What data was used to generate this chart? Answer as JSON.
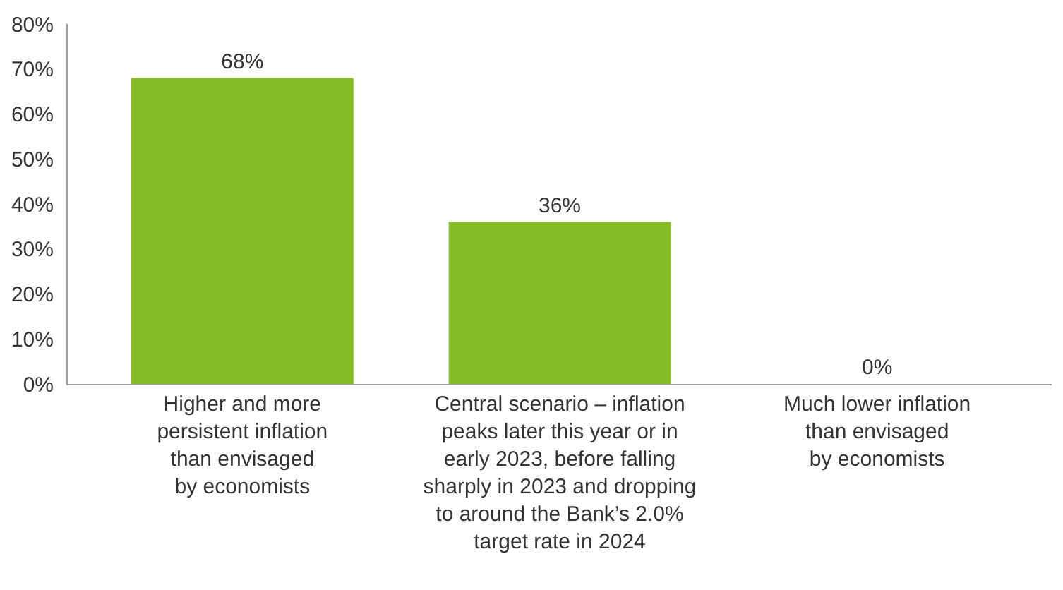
{
  "chart_data": {
    "type": "bar",
    "categories": [
      "Higher and more\npersistent inflation\nthan envisaged\nby economists",
      "Central scenario – inflation\npeaks later this year or in\nearly 2023, before falling\nsharply in 2023 and dropping\nto around the Bank’s 2.0%\ntarget rate in 2024",
      "Much lower inflation\nthan envisaged\nby economists"
    ],
    "values": [
      68,
      36,
      0
    ],
    "value_labels": [
      "68%",
      "36%",
      "0%"
    ],
    "color": "#86bc25",
    "ylim": [
      0,
      80
    ],
    "yticks": [
      {
        "value": 0,
        "label": "0%"
      },
      {
        "value": 10,
        "label": "10%"
      },
      {
        "value": 20,
        "label": "20%"
      },
      {
        "value": 30,
        "label": "30%"
      },
      {
        "value": 40,
        "label": "40%"
      },
      {
        "value": 50,
        "label": "50%"
      },
      {
        "value": 60,
        "label": "60%"
      },
      {
        "value": 70,
        "label": "70%"
      },
      {
        "value": 80,
        "label": "80%"
      }
    ],
    "legend": false
  }
}
